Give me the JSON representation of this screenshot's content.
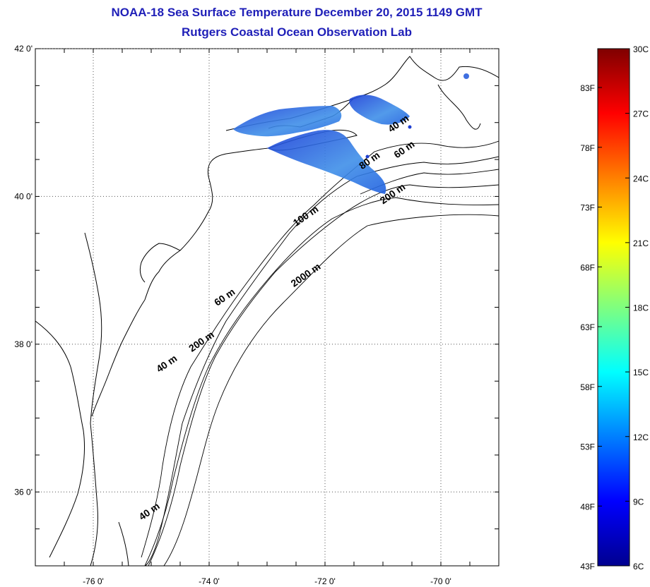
{
  "title": "NOAA-18 Sea Surface Temperature December 20, 2015 1149 GMT",
  "subtitle": "Rutgers Coastal Ocean Observation Lab",
  "map": {
    "lon_ticks": [
      {
        "value": -76,
        "label": "-76 0'"
      },
      {
        "value": -74,
        "label": "-74 0'"
      },
      {
        "value": -72,
        "label": "-72 0'"
      },
      {
        "value": -70,
        "label": "-70 0'"
      }
    ],
    "lat_ticks": [
      {
        "value": 42,
        "label": "42 0'"
      },
      {
        "value": 40,
        "label": "40 0'"
      },
      {
        "value": 38,
        "label": "38 0'"
      },
      {
        "value": 36,
        "label": "36 0'"
      }
    ],
    "lon_range": [
      -77,
      -69
    ],
    "lat_range": [
      35,
      42
    ],
    "grid": "dotted",
    "contour_labels": [
      {
        "text": "40 m",
        "lon": -70.7,
        "lat": 40.95
      },
      {
        "text": "60 m",
        "lon": -70.6,
        "lat": 40.6
      },
      {
        "text": "80 m",
        "lon": -71.2,
        "lat": 40.45
      },
      {
        "text": "200 m",
        "lon": -70.8,
        "lat": 40.0
      },
      {
        "text": "100 m",
        "lon": -72.3,
        "lat": 39.7
      },
      {
        "text": "2000 m",
        "lon": -72.3,
        "lat": 38.9
      },
      {
        "text": "60 m",
        "lon": -73.7,
        "lat": 38.6
      },
      {
        "text": "200 m",
        "lon": -74.1,
        "lat": 38.0
      },
      {
        "text": "40 m",
        "lon": -74.7,
        "lat": 37.7
      },
      {
        "text": "40 m",
        "lon": -75.0,
        "lat": 35.7
      }
    ]
  },
  "colorbar": {
    "f_labels": [
      "83F",
      "78F",
      "73F",
      "68F",
      "63F",
      "58F",
      "53F",
      "48F",
      "43F"
    ],
    "c_labels": [
      "30C",
      "27C",
      "24C",
      "21C",
      "18C",
      "15C",
      "12C",
      "9C",
      "6C"
    ],
    "c_range": [
      6,
      30
    ]
  },
  "colors": {
    "title": "#1f1fb8",
    "coast": "#000000",
    "sst_patch": "#2f6fe0"
  }
}
